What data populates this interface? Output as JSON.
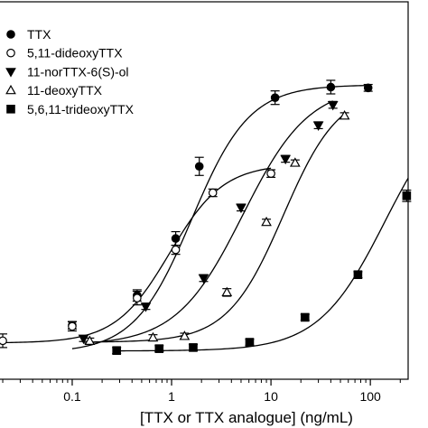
{
  "chart_data": {
    "type": "scatter",
    "title": "",
    "xlabel": "[TTX or TTX analogue] (ng/mL)",
    "ylabel": "",
    "x_scale": "log",
    "xlim": [
      0.018,
      240
    ],
    "ylim": [
      0,
      100
    ],
    "x_ticks": [
      0.1,
      1,
      10,
      100
    ],
    "x_tick_labels": [
      "0.1",
      "1",
      "10",
      "100"
    ],
    "grid": false,
    "legend_position": "top-left",
    "series": [
      {
        "name": "TTX",
        "marker": "filled-circle",
        "x": [
          0.1,
          0.45,
          1.1,
          1.9,
          11,
          40,
          95
        ],
        "y": [
          14.3,
          22.2,
          37.3,
          56.4,
          74.6,
          77.4,
          77.2
        ],
        "err": [
          1.0,
          1.5,
          1.8,
          2.4,
          1.8,
          1.8,
          0.9
        ]
      },
      {
        "name": "5,11-dideoxyTTX",
        "marker": "open-circle",
        "x": [
          0.02,
          0.1,
          0.45,
          1.1,
          2.6,
          10
        ],
        "y": [
          10.2,
          14.0,
          21.5,
          34.3,
          49.4,
          54.5
        ],
        "err": [
          1.8,
          1.2,
          1.8,
          1.2,
          1.0,
          1.0
        ]
      },
      {
        "name": "11-norTTX-6(S)-ol",
        "marker": "filled-triangle-down",
        "x": [
          0.13,
          0.55,
          2.1,
          5,
          14,
          30,
          42
        ],
        "y": [
          10.8,
          19.3,
          26.8,
          45.5,
          58.4,
          67.3,
          72.7
        ],
        "err": [
          0.8,
          0.8,
          0.9,
          0.9,
          0.9,
          0.9,
          0.9
        ]
      },
      {
        "name": "11-deoxyTTX",
        "marker": "open-triangle-up",
        "x": [
          0.15,
          0.65,
          1.35,
          3.6,
          9,
          17.5,
          55
        ],
        "y": [
          10.1,
          11.0,
          11.4,
          23.0,
          41.6,
          57.3,
          69.8
        ],
        "err": [
          0.8,
          0.8,
          0.8,
          1.0,
          0.8,
          0.8,
          0.8
        ]
      },
      {
        "name": "5,6,11-trideoxyTTX",
        "marker": "filled-square",
        "x": [
          0.28,
          0.75,
          1.65,
          6.1,
          22,
          75,
          232
        ],
        "y": [
          7.6,
          8.1,
          8.4,
          9.8,
          16.4,
          27.7,
          48.6
        ],
        "err": [
          0.8,
          0.8,
          0.8,
          0.8,
          0.8,
          0.8,
          1.5
        ]
      }
    ],
    "fit_curves": [
      {
        "series": "TTX",
        "bottom": 7,
        "top": 78,
        "ec50": 1.6,
        "hill": 1.5,
        "x_range": [
          0.1,
          95
        ]
      },
      {
        "series": "5,11-dideoxyTTX",
        "bottom": 9.6,
        "top": 57,
        "ec50": 0.95,
        "hill": 1.6,
        "x_range": [
          0.02,
          10
        ]
      },
      {
        "series": "11-norTTX-6(S)-ol",
        "bottom": 9,
        "top": 78,
        "ec50": 5.2,
        "hill": 1.3,
        "x_range": [
          0.13,
          42
        ]
      },
      {
        "series": "11-deoxyTTX",
        "bottom": 9.8,
        "top": 77,
        "ec50": 13.3,
        "hill": 1.55,
        "x_range": [
          0.15,
          55
        ]
      },
      {
        "series": "5,6,11-trideoxyTTX",
        "bottom": 7.5,
        "top": 76,
        "ec50": 140,
        "hill": 1.3,
        "x_range": [
          0.28,
          240
        ]
      }
    ]
  }
}
